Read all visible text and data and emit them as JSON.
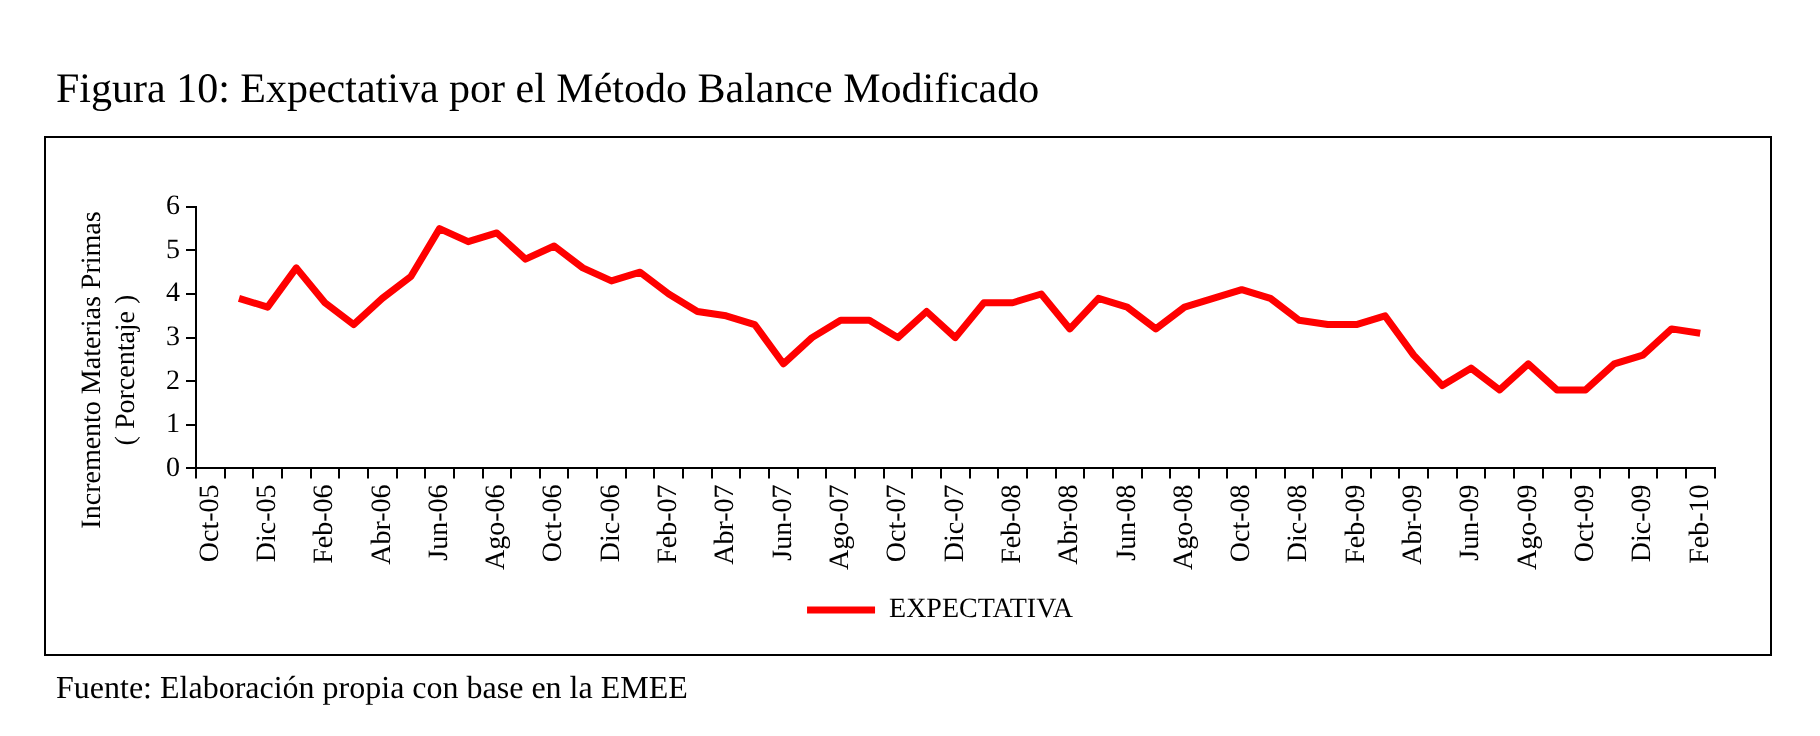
{
  "chart_data": {
    "type": "line",
    "title": "Figura 10: Expectativa por el Método Balance Modificado",
    "ylabel": "Incremento Materias Primas\n( Porcentaje )",
    "categories": [
      "Oct-05",
      null,
      "Dic-05",
      null,
      "Feb-06",
      null,
      "Abr-06",
      null,
      "Jun-06",
      null,
      "Ago-06",
      null,
      "Oct-06",
      null,
      "Dic-06",
      null,
      "Feb-07",
      null,
      "Abr-07",
      null,
      "Jun-07",
      null,
      "Ago-07",
      null,
      "Oct-07",
      null,
      "Dic-07",
      null,
      "Feb-08",
      null,
      "Abr-08",
      null,
      "Jun-08",
      null,
      "Ago-08",
      null,
      "Oct-08",
      null,
      "Dic-08",
      null,
      "Feb-09",
      null,
      "Abr-09",
      null,
      "Jun-09",
      null,
      "Ago-09",
      null,
      "Oct-09",
      null,
      "Dic-09",
      null,
      "Feb-10"
    ],
    "series": [
      {
        "name": "EXPECTATIVA",
        "color": "#ff0000",
        "values": [
          null,
          3.9,
          3.7,
          4.6,
          3.8,
          3.3,
          3.9,
          4.4,
          5.5,
          5.2,
          5.4,
          4.8,
          5.1,
          4.6,
          4.3,
          4.5,
          4.0,
          3.6,
          3.5,
          3.3,
          2.4,
          3.0,
          3.4,
          3.4,
          3.0,
          3.6,
          3.0,
          3.8,
          3.8,
          4.0,
          3.2,
          3.9,
          3.7,
          3.2,
          3.7,
          3.9,
          4.1,
          3.9,
          3.4,
          3.3,
          3.3,
          3.5,
          2.6,
          1.9,
          2.3,
          1.8,
          2.4,
          1.8,
          1.8,
          2.4,
          2.6,
          3.2,
          3.1
        ]
      }
    ],
    "ylim": [
      0,
      6
    ],
    "yticks": [
      0,
      1,
      2,
      3,
      4,
      5,
      6
    ],
    "grid": false,
    "legend": "bottom",
    "marker": "none",
    "line_style": "solid",
    "annotations": [
      "Fuente: Elaboración propia con base en la EMEE"
    ]
  }
}
